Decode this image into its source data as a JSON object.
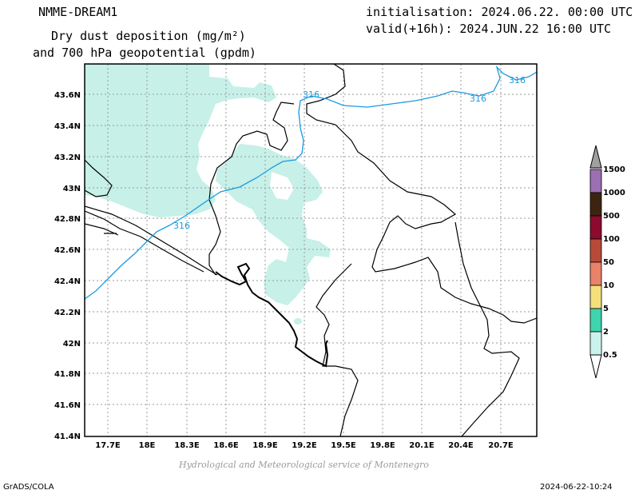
{
  "header": {
    "model": "NMME-DREAM1",
    "title_line1": "Dry dust deposition (mg/m²)",
    "title_line2": "and 700 hPa geopotential (gpdm)",
    "init": "initialisation: 2024.06.22. 00:00 UTC",
    "valid": "valid(+16h): 2024.JUN.22 16:00 UTC"
  },
  "map": {
    "lat_ticks": [
      "43.6N",
      "43.4N",
      "43.2N",
      "43N",
      "42.8N",
      "42.6N",
      "42.4N",
      "42.2N",
      "42N",
      "41.8N",
      "41.6N",
      "41.4N"
    ],
    "lon_ticks": [
      "17.7E",
      "18E",
      "18.3E",
      "18.6E",
      "18.9E",
      "19.2E",
      "19.5E",
      "19.8E",
      "20.1E",
      "20.4E",
      "20.7E"
    ],
    "contour_labels": [
      "316",
      "316",
      "316",
      "316"
    ],
    "deposition_color": "#c6f0e8",
    "contour_color": "#1a9be0"
  },
  "colorbar": {
    "levels": [
      "1500",
      "1000",
      "500",
      "100",
      "50",
      "10",
      "5",
      "2",
      "0.5"
    ],
    "colors": [
      "#9b6fb0",
      "#3d2410",
      "#8c0a2e",
      "#b84a3a",
      "#e8836a",
      "#f4e07a",
      "#3fd4ad",
      "#c9f3ec"
    ],
    "top_color": "#a0a0a0"
  },
  "footer": {
    "credit": "Hydrological and Meteorological service of Montenegro",
    "grads": "GrADS/COLA",
    "timestamp": "2024-06-22-10:24"
  }
}
